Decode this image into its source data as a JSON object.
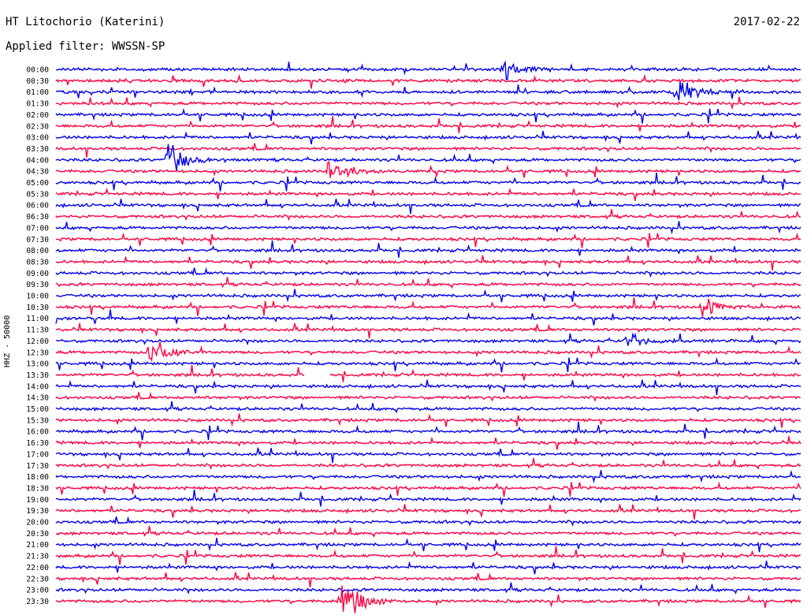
{
  "header": {
    "station": "HT Litochorio (Katerini)",
    "date": "2017-02-22",
    "filter": "Applied filter: WWSSN-SP",
    "channel": "HHZ - 50000"
  },
  "colors": {
    "blue": "#0000ee",
    "red": "#ff0040"
  },
  "chart_data": {
    "type": "line",
    "title": "HT Litochorio (Katerini)",
    "ylabel": "HHZ - 50000",
    "rows": [
      "00:00",
      "00:30",
      "01:00",
      "01:30",
      "02:00",
      "02:30",
      "03:00",
      "03:30",
      "04:00",
      "04:30",
      "05:00",
      "05:30",
      "06:00",
      "06:30",
      "07:00",
      "07:30",
      "08:00",
      "08:30",
      "09:00",
      "09:30",
      "10:00",
      "10:30",
      "11:00",
      "11:30",
      "12:00",
      "12:30",
      "13:00",
      "13:30",
      "14:00",
      "14:30",
      "15:00",
      "15:30",
      "16:00",
      "16:30",
      "17:00",
      "17:30",
      "18:00",
      "18:30",
      "19:00",
      "19:30",
      "20:00",
      "20:30",
      "21:00",
      "21:30",
      "22:00",
      "22:30",
      "23:00",
      "23:30"
    ],
    "row_minutes": 30,
    "grid": false,
    "events": [
      {
        "row": 0,
        "min": 18.0,
        "amp": 0.9
      },
      {
        "row": 2,
        "min": 25.0,
        "amp": 1.5
      },
      {
        "row": 8,
        "min": 4.5,
        "amp": 1.7
      },
      {
        "row": 9,
        "min": 11.0,
        "amp": 1.0
      },
      {
        "row": 21,
        "min": 26.0,
        "amp": 1.0
      },
      {
        "row": 24,
        "min": 23.0,
        "amp": 0.7
      },
      {
        "row": 25,
        "min": 3.8,
        "amp": 1.8
      },
      {
        "row": 47,
        "min": 11.5,
        "amp": 2.2
      }
    ],
    "gaps": [
      {
        "row": 27,
        "from_min": 10.0,
        "to_min": 11.0
      }
    ]
  }
}
